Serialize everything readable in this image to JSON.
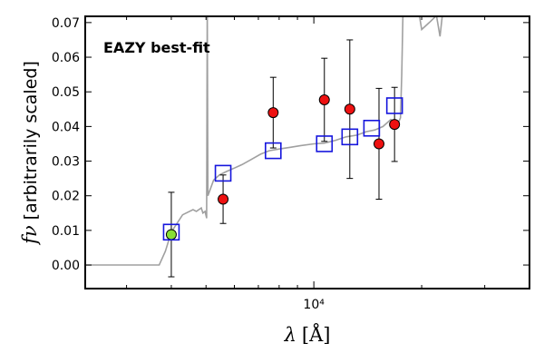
{
  "chart_data": {
    "type": "scatter",
    "title": "",
    "annotation": "EAZY best-fit",
    "xlabel_symbol": "λ",
    "xlabel_unit": "[Å]",
    "ylabel_symbol": "fν",
    "ylabel_unit": "[arbitrarily scaled]",
    "xscale": "log",
    "xlim": [
      2300,
      40000
    ],
    "ylim": [
      -0.0068,
      0.0718
    ],
    "xticks": [
      {
        "value": 10000,
        "label": "10⁴"
      }
    ],
    "yticks": [
      {
        "value": 0.0,
        "label": "0.00"
      },
      {
        "value": 0.01,
        "label": "0.01"
      },
      {
        "value": 0.02,
        "label": "0.02"
      },
      {
        "value": 0.03,
        "label": "0.03"
      },
      {
        "value": 0.04,
        "label": "0.04"
      },
      {
        "value": 0.05,
        "label": "0.05"
      },
      {
        "value": 0.06,
        "label": "0.06"
      },
      {
        "value": 0.07,
        "label": "0.07"
      }
    ],
    "grid": false,
    "colors": {
      "sed": "#a0a0a0",
      "observed": "#ee1111",
      "observed_special": "#88e033",
      "model": "#1515dd",
      "errorbar": "#000000",
      "annotation": "#ff0000"
    },
    "observed_photometry": [
      {
        "x": 4000,
        "y": 0.0088,
        "err": 0.0122,
        "marker": "special"
      },
      {
        "x": 5580,
        "y": 0.019,
        "err": 0.007
      },
      {
        "x": 7700,
        "y": 0.044,
        "err": 0.0102
      },
      {
        "x": 10700,
        "y": 0.0477,
        "err": 0.012
      },
      {
        "x": 12600,
        "y": 0.045,
        "err": 0.02
      },
      {
        "x": 15200,
        "y": 0.035,
        "err": 0.016
      },
      {
        "x": 16800,
        "y": 0.0406,
        "err": 0.0107
      }
    ],
    "model_photometry": [
      {
        "x": 4000,
        "y": 0.0095
      },
      {
        "x": 5580,
        "y": 0.0265
      },
      {
        "x": 7700,
        "y": 0.033
      },
      {
        "x": 10700,
        "y": 0.035
      },
      {
        "x": 12600,
        "y": 0.037
      },
      {
        "x": 14500,
        "y": 0.0395
      },
      {
        "x": 16800,
        "y": 0.046
      }
    ],
    "best_fit_sed": [
      [
        2300,
        0.0
      ],
      [
        3000,
        0.0
      ],
      [
        3700,
        0.0
      ],
      [
        3850,
        0.004
      ],
      [
        4000,
        0.0095
      ],
      [
        4300,
        0.0145
      ],
      [
        4600,
        0.016
      ],
      [
        4700,
        0.0155
      ],
      [
        4850,
        0.0165
      ],
      [
        4900,
        0.015
      ],
      [
        4970,
        0.0155
      ],
      [
        5020,
        0.0135
      ],
      [
        5040,
        0.075
      ],
      [
        5060,
        0.02
      ],
      [
        5250,
        0.0245
      ],
      [
        5450,
        0.026
      ],
      [
        5700,
        0.027
      ],
      [
        6000,
        0.028
      ],
      [
        6300,
        0.029
      ],
      [
        6700,
        0.0305
      ],
      [
        7100,
        0.032
      ],
      [
        7500,
        0.033
      ],
      [
        8000,
        0.0335
      ],
      [
        8600,
        0.034
      ],
      [
        9200,
        0.0345
      ],
      [
        10000,
        0.035
      ],
      [
        10700,
        0.0352
      ],
      [
        11500,
        0.036
      ],
      [
        12300,
        0.037
      ],
      [
        13200,
        0.0375
      ],
      [
        14000,
        0.0385
      ],
      [
        14800,
        0.039
      ],
      [
        15600,
        0.04
      ],
      [
        16400,
        0.042
      ],
      [
        17200,
        0.041
      ],
      [
        17450,
        0.0425
      ],
      [
        17600,
        0.055
      ],
      [
        17750,
        0.075
      ],
      [
        19500,
        0.075
      ],
      [
        20000,
        0.068
      ],
      [
        21000,
        0.07
      ],
      [
        22000,
        0.072
      ],
      [
        22500,
        0.066
      ],
      [
        23000,
        0.075
      ]
    ]
  }
}
